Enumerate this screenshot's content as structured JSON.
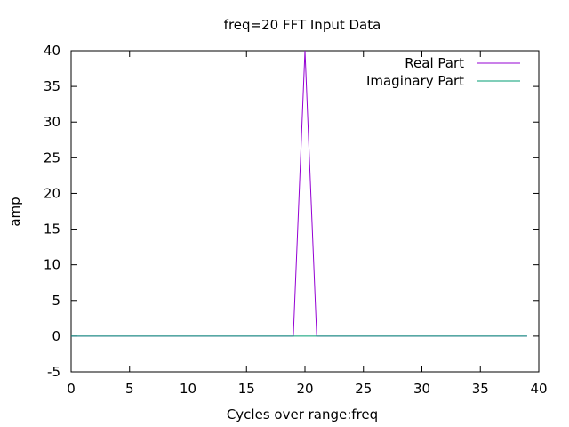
{
  "chart_data": {
    "type": "line",
    "title": "freq=20 FFT Input Data",
    "xlabel": "Cycles over range:freq",
    "ylabel": "amp",
    "xlim": [
      0,
      40
    ],
    "ylim": [
      -5,
      40
    ],
    "xticks": [
      0,
      5,
      10,
      15,
      20,
      25,
      30,
      35,
      40
    ],
    "yticks": [
      -5,
      0,
      5,
      10,
      15,
      20,
      25,
      30,
      35,
      40
    ],
    "grid": false,
    "legend_position": "top-right",
    "series": [
      {
        "name": "Real Part",
        "color": "#9400d3",
        "x": [
          0,
          19,
          20,
          21,
          39
        ],
        "y": [
          0,
          0,
          40,
          0,
          0
        ]
      },
      {
        "name": "Imaginary Part",
        "color": "#009e73",
        "x": [
          0,
          39
        ],
        "y": [
          0,
          0
        ]
      }
    ]
  }
}
